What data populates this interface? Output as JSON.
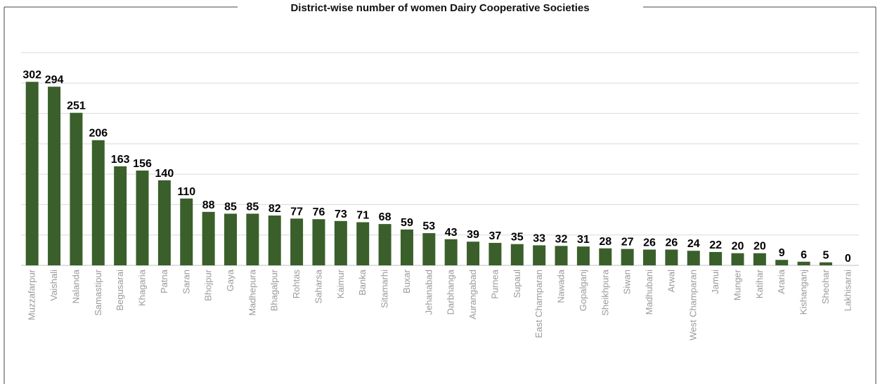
{
  "chart_data": {
    "type": "bar",
    "title": "District-wise number of women Dairy Cooperative Societies",
    "categories": [
      "Muzzafarpur",
      "Vaishali",
      "Nalanda",
      "Samastipur",
      "Begusarai",
      "Khagaria",
      "Patna",
      "Saran",
      "Bhojpur",
      "Gaya",
      "Madhepura",
      "Bhagalpur",
      "Rohtas",
      "Saharsa",
      "Kaimur",
      "Banka",
      "Sitamarhi",
      "Buxar",
      "Jehanabad",
      "Darbhanga",
      "Aurangabad",
      "Purnea",
      "Supaul",
      "East Champaran",
      "Nawada",
      "Gopalganj",
      "Sheikhpura",
      "Siwan",
      "Madhubani",
      "Arwal",
      "West Champaran",
      "Jamui",
      "Munger",
      "Katihar",
      "Araria",
      "Kishanganj",
      "Sheohar",
      "Lakhisarai"
    ],
    "values": [
      302,
      294,
      251,
      206,
      163,
      156,
      140,
      110,
      88,
      85,
      85,
      82,
      77,
      76,
      73,
      71,
      68,
      59,
      53,
      43,
      39,
      37,
      35,
      33,
      32,
      31,
      28,
      27,
      26,
      26,
      24,
      22,
      20,
      20,
      9,
      6,
      5,
      0
    ],
    "xlabel": "",
    "ylabel": "",
    "ylim": [
      0,
      350
    ],
    "grid": true,
    "legend": "none",
    "colors": {
      "bar": "#3a5f2b",
      "grid": "#d9d9d9",
      "frame": "#444444",
      "category_text": "#9a9a9a"
    }
  }
}
